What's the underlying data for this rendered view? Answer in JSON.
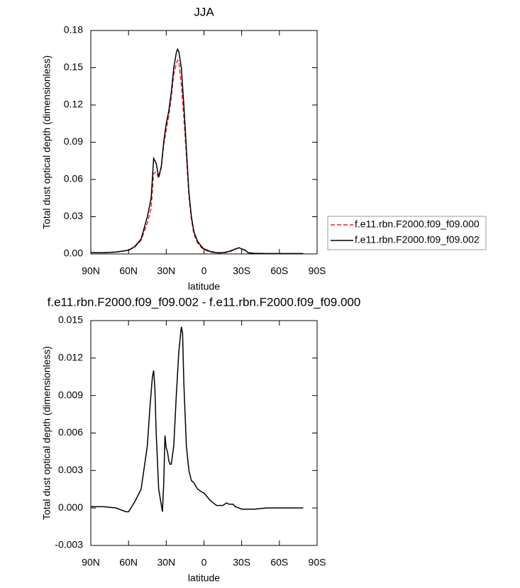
{
  "chart_data": [
    {
      "type": "line",
      "title": "JJA",
      "xlabel": "latitude",
      "ylabel": "Total dust optical depth (dimensionless)",
      "x": [
        90,
        80,
        70,
        60,
        55,
        50,
        45,
        42,
        40,
        38,
        36,
        34,
        32,
        30,
        28,
        26,
        24,
        22,
        21,
        20,
        18,
        16,
        14,
        12,
        10,
        8,
        5,
        2,
        0,
        -5,
        -10,
        -15,
        -20,
        -25,
        -28,
        -30,
        -33,
        -35,
        -40,
        -50,
        -60,
        -70,
        -79
      ],
      "series": [
        {
          "name": "f.e11.rbn.F2000.f09_f09.000",
          "color": "#e8262a",
          "dashed": true,
          "values": [
            0.001,
            0.001,
            0.0015,
            0.003,
            0.0055,
            0.011,
            0.025,
            0.037,
            0.065,
            0.066,
            0.061,
            0.069,
            0.088,
            0.1,
            0.111,
            0.126,
            0.145,
            0.153,
            0.156,
            0.155,
            0.136,
            0.11,
            0.08,
            0.047,
            0.028,
            0.016,
            0.0085,
            0.005,
            0.0035,
            0.0015,
            0.0008,
            0.0008,
            0.0016,
            0.0039,
            0.005,
            0.0041,
            0.003,
            0.001,
            0.0005,
            0.0003,
            0.0003,
            0.0003,
            0.0003
          ]
        },
        {
          "name": "f.e11.rbn.F2000.f09_f09.002",
          "color": "#000000",
          "dashed": false,
          "values": [
            0.001,
            0.001,
            0.0015,
            0.003,
            0.006,
            0.012,
            0.03,
            0.045,
            0.077,
            0.073,
            0.062,
            0.07,
            0.09,
            0.105,
            0.115,
            0.13,
            0.15,
            0.162,
            0.165,
            0.163,
            0.15,
            0.12,
            0.085,
            0.05,
            0.03,
            0.018,
            0.01,
            0.006,
            0.004,
            0.002,
            0.001,
            0.001,
            0.002,
            0.004,
            0.005,
            0.004,
            0.003,
            0.001,
            0.0005,
            0.0003,
            0.0003,
            0.0003,
            0.0003
          ]
        }
      ],
      "xlim": [
        90,
        -90
      ],
      "xticks": [
        {
          "value": 90,
          "label": "90N"
        },
        {
          "value": 60,
          "label": "60N"
        },
        {
          "value": 30,
          "label": "30N"
        },
        0,
        {
          "value": -30,
          "label": "30S"
        },
        {
          "value": -60,
          "label": "60S"
        },
        {
          "value": -90,
          "label": "90S"
        }
      ],
      "ylim": [
        0,
        0.18
      ],
      "yticks": [
        {
          "value": 0,
          "label": "0.00"
        },
        0.03,
        0.06,
        0.09,
        0.12,
        0.15,
        0.18
      ],
      "legend": "right"
    },
    {
      "type": "line",
      "title": "f.e11.rbn.F2000.f09_f09.002 - f.e11.rbn.F2000.f09_f09.000",
      "xlabel": "latitude",
      "ylabel": "Total dust optical depth (dimensionless)",
      "x": [
        90,
        80,
        70,
        62,
        60,
        55,
        50,
        45,
        43,
        41,
        40,
        39,
        38,
        36,
        34,
        33,
        32,
        31,
        30,
        29,
        28,
        27,
        26,
        24,
        22,
        20,
        18,
        17,
        16,
        14,
        12,
        10,
        8,
        5,
        2,
        0,
        -5,
        -10,
        -15,
        -18,
        -20,
        -23,
        -25,
        -28,
        -30,
        -40,
        -50,
        -60,
        -70,
        -79
      ],
      "values": [
        0.0001,
        0.0001,
        0,
        -0.0003,
        -0.0003,
        0.0005,
        0.0015,
        0.005,
        0.008,
        0.0105,
        0.011,
        0.0095,
        0.006,
        0.0015,
        0.0003,
        -0.0003,
        0.002,
        0.0058,
        0.0048,
        0.0045,
        0.0038,
        0.0035,
        0.0035,
        0.005,
        0.009,
        0.0125,
        0.0145,
        0.014,
        0.01,
        0.005,
        0.003,
        0.0022,
        0.002,
        0.0015,
        0.0013,
        0.0012,
        0.0006,
        0.0002,
        0.0002,
        0.0004,
        0.0003,
        0.0003,
        0.0001,
        0,
        -0.0001,
        -0.0001,
        0,
        0,
        0,
        0
      ],
      "color": "#000000",
      "xlim": [
        90,
        -90
      ],
      "xticks": [
        {
          "value": 90,
          "label": "90N"
        },
        {
          "value": 60,
          "label": "60N"
        },
        {
          "value": 30,
          "label": "30N"
        },
        0,
        {
          "value": -30,
          "label": "30S"
        },
        {
          "value": -60,
          "label": "60S"
        },
        {
          "value": -90,
          "label": "90S"
        }
      ],
      "ylim": [
        -0.003,
        0.015
      ],
      "yticks": [
        -0.003,
        {
          "value": 0,
          "label": "0.000"
        },
        0.003,
        0.006,
        0.009,
        0.012,
        0.015
      ]
    }
  ]
}
